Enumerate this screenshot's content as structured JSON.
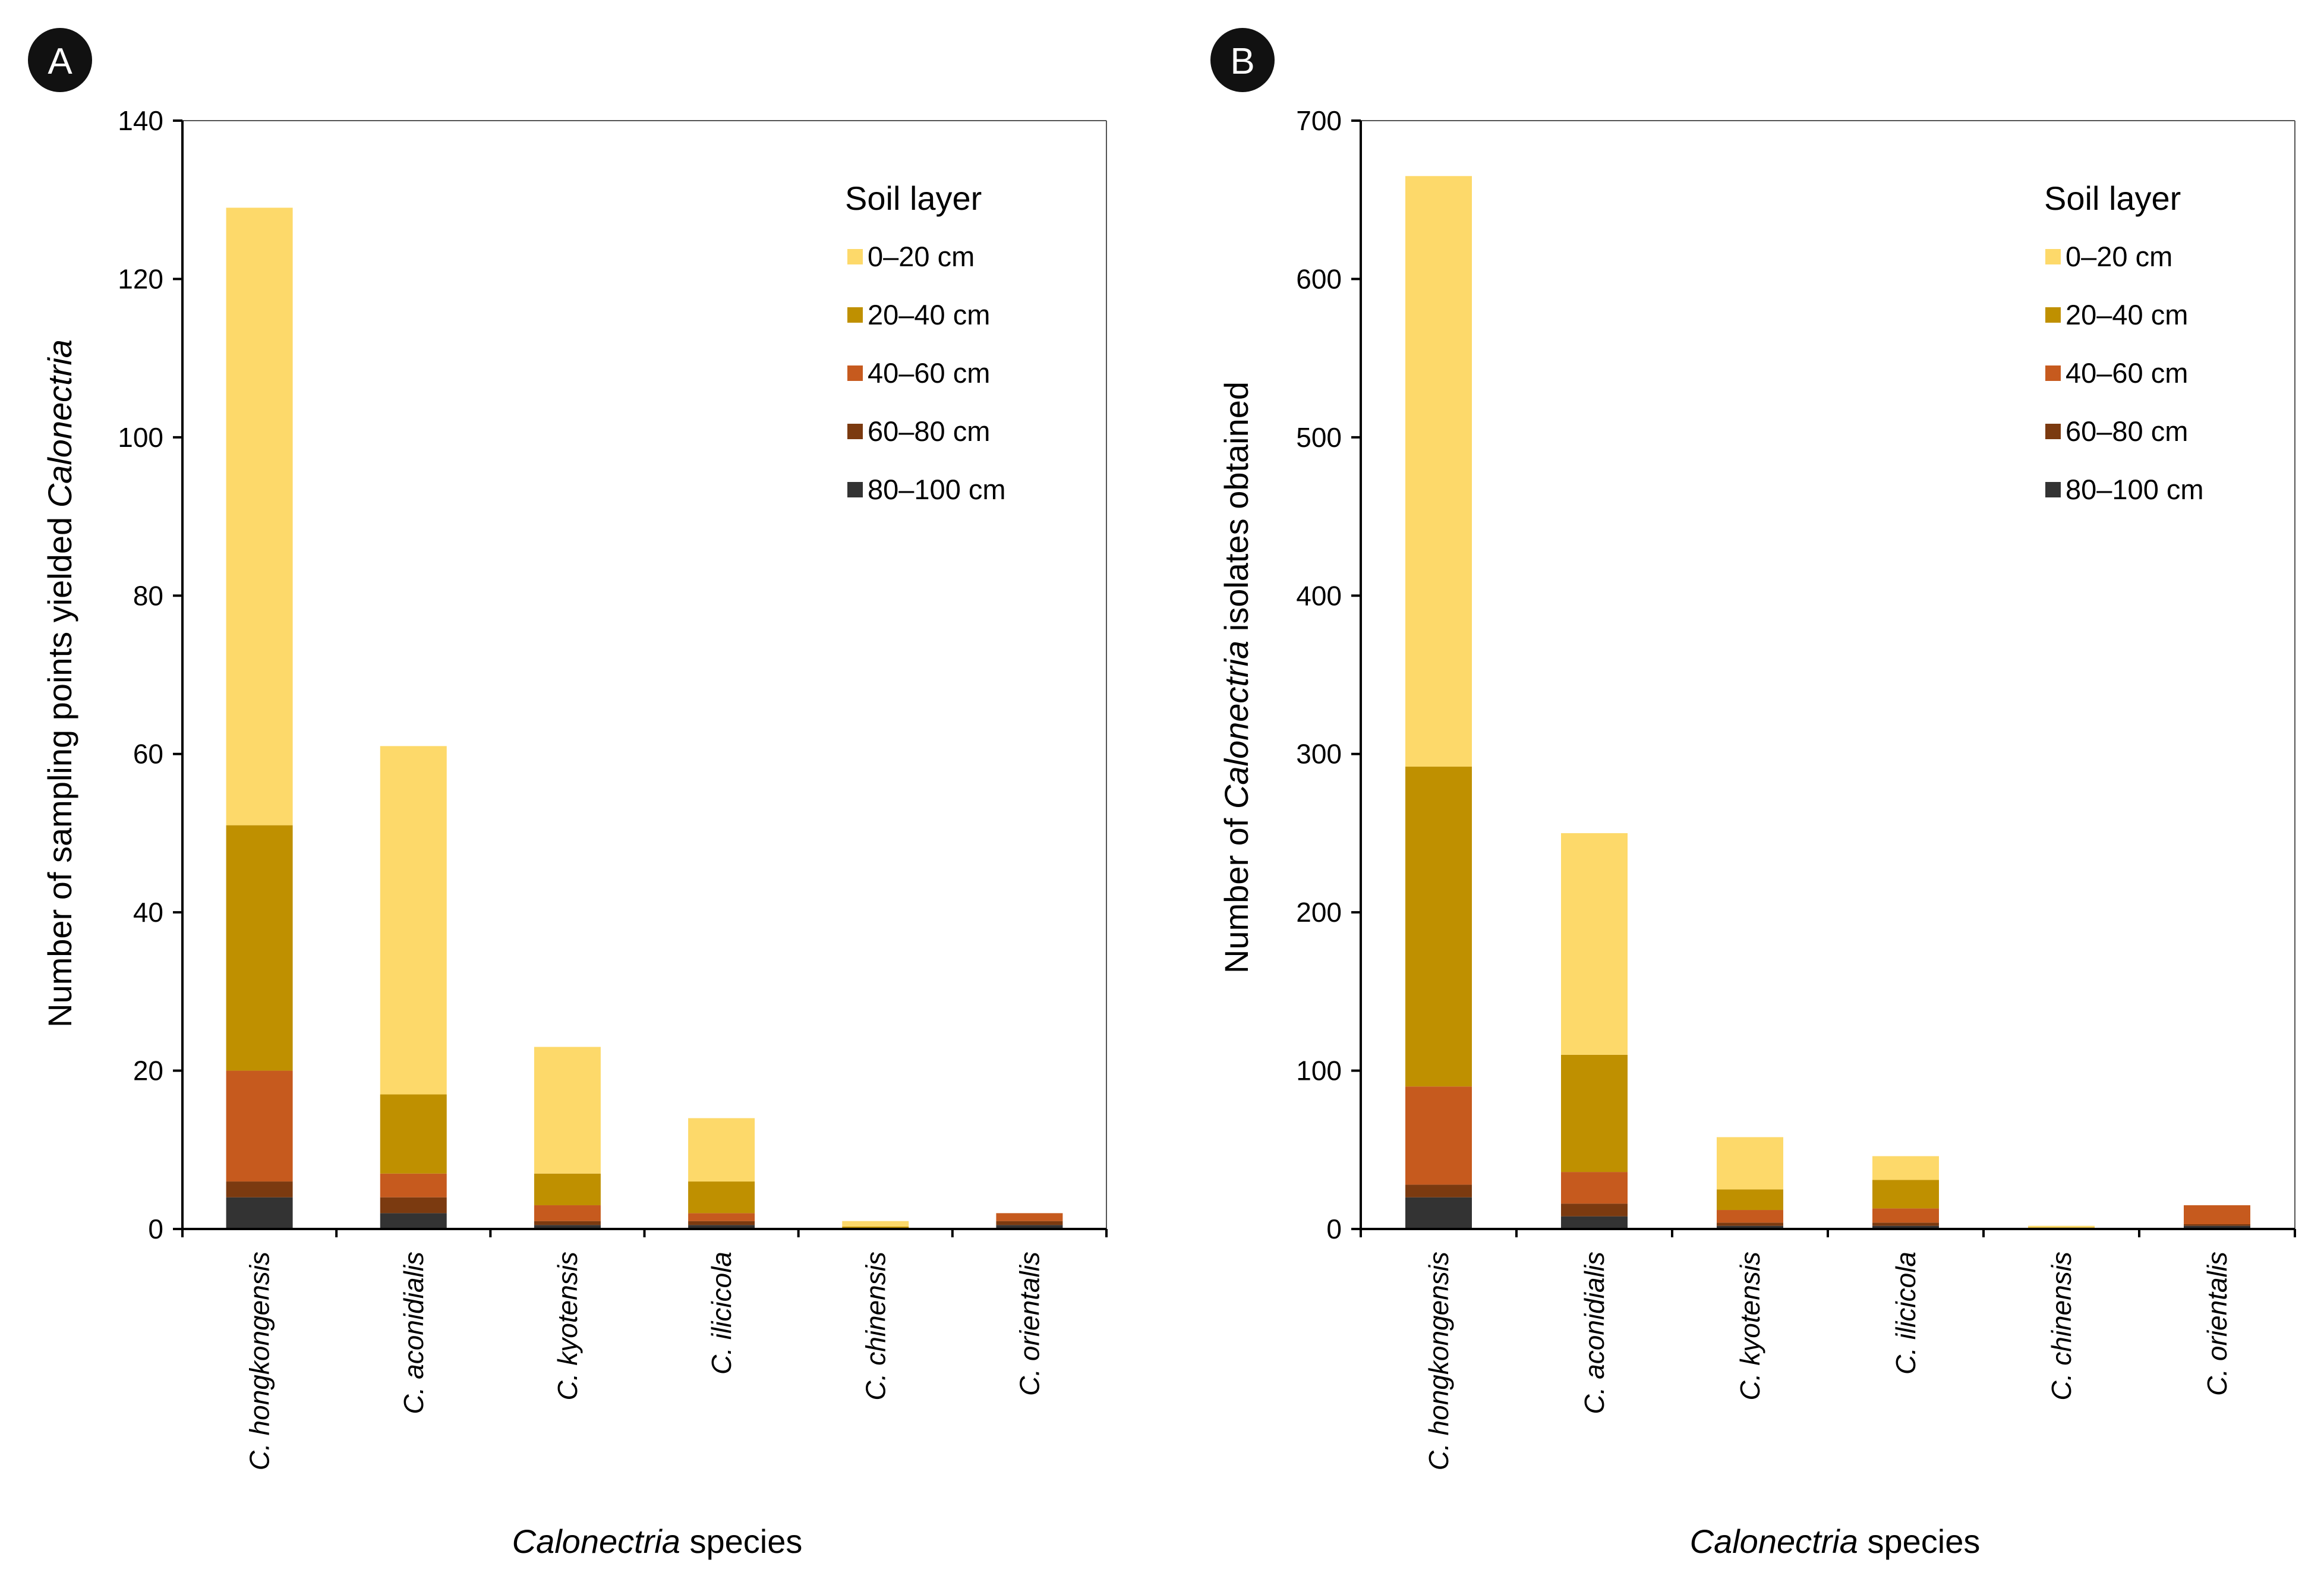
{
  "figure": {
    "legend_title": "Soil layer",
    "layers": [
      {
        "name": "0–20 cm",
        "color": "#FDD96A"
      },
      {
        "name": "20–40 cm",
        "color": "#BF9000"
      },
      {
        "name": "40–60 cm",
        "color": "#C65A1E"
      },
      {
        "name": "60–80 cm",
        "color": "#7B3A10"
      },
      {
        "name": "80–100 cm",
        "color": "#333333"
      }
    ]
  },
  "chart_data": [
    {
      "panel": "A",
      "type": "bar",
      "stacked": true,
      "xlabel_italic": "Calonectria",
      "xlabel_rest": " species",
      "ylabel_prefix": "Number of  sampling points yielded ",
      "ylabel_italic": "Calonectria",
      "ylabel_suffix": "",
      "ylim": [
        0,
        140
      ],
      "yticks": [
        0,
        20,
        40,
        60,
        80,
        100,
        120,
        140
      ],
      "categories": [
        "C. hongkongensis",
        "C. aconidialis",
        "C. kyotensis",
        "C. ilicicola",
        "C. chinensis",
        "C. orientalis"
      ],
      "series": [
        {
          "name": "80–100 cm",
          "values": [
            4,
            2,
            0.5,
            0.5,
            0,
            0.5
          ]
        },
        {
          "name": "60–80 cm",
          "values": [
            2,
            2,
            0.5,
            0.5,
            0,
            0.5
          ]
        },
        {
          "name": "40–60 cm",
          "values": [
            14,
            3,
            2,
            1,
            0,
            1
          ]
        },
        {
          "name": "20–40 cm",
          "values": [
            31,
            10,
            4,
            4,
            0.3,
            0
          ]
        },
        {
          "name": "0–20 cm",
          "values": [
            78,
            44,
            16,
            8,
            0.7,
            0
          ]
        }
      ]
    },
    {
      "panel": "B",
      "type": "bar",
      "stacked": true,
      "xlabel_italic": "Calonectria",
      "xlabel_rest": " species",
      "ylabel_prefix": "Number of ",
      "ylabel_italic": "Calonectria",
      "ylabel_suffix": " isolates obtained",
      "ylim": [
        0,
        700
      ],
      "yticks": [
        0,
        100,
        200,
        300,
        400,
        500,
        600,
        700
      ],
      "categories": [
        "C. hongkongensis",
        "C. aconidialis",
        "C. kyotensis",
        "C. ilicicola",
        "C. chinensis",
        "C. orientalis"
      ],
      "series": [
        {
          "name": "80–100 cm",
          "values": [
            20,
            8,
            2,
            2,
            0,
            2
          ]
        },
        {
          "name": "60–80 cm",
          "values": [
            8,
            8,
            2,
            2,
            0,
            1
          ]
        },
        {
          "name": "40–60 cm",
          "values": [
            62,
            20,
            8,
            9,
            0,
            12
          ]
        },
        {
          "name": "20–40 cm",
          "values": [
            202,
            74,
            13,
            18,
            1,
            0
          ]
        },
        {
          "name": "0–20 cm",
          "values": [
            373,
            140,
            33,
            15,
            1,
            0
          ]
        }
      ]
    }
  ]
}
